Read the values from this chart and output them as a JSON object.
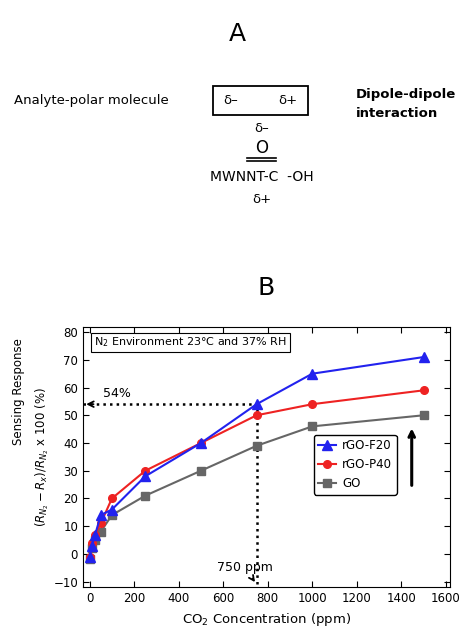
{
  "panel_A_label": "A",
  "panel_B_label": "B",
  "analyte_text": "Analyte-polar molecule",
  "box_text_left": "δ–",
  "box_text_right": "δ+",
  "dipole_line1": "Dipole-dipole",
  "dipole_line2": "interaction",
  "mwnnt_text": "MWNNT-C  -OH",
  "delta_minus_top": "δ–",
  "delta_plus_bottom": "δ+",
  "double_bond_o": "O",
  "annotation_text": "N₂ Environment 23°C and 37% RH",
  "annotation_54": "54%",
  "annotation_750": "750 ppm",
  "legend_rGO_F20": "rGO-F20",
  "legend_rGO_P40": "rGO-P40",
  "legend_GO": "GO",
  "x_data": [
    0,
    10,
    25,
    50,
    100,
    250,
    500,
    750,
    1000,
    1500
  ],
  "rGO_F20_y": [
    -1,
    3,
    7,
    14,
    16,
    28,
    40,
    54,
    65,
    71
  ],
  "rGO_P40_y": [
    -1,
    4,
    7,
    11,
    20,
    30,
    40,
    50,
    54,
    59
  ],
  "GO_y": [
    -2,
    2,
    5,
    8,
    14,
    21,
    30,
    39,
    46,
    50
  ],
  "xlim": [
    -30,
    1620
  ],
  "ylim": [
    -12,
    82
  ],
  "xticks": [
    0,
    200,
    400,
    600,
    800,
    1000,
    1200,
    1400,
    1600
  ],
  "yticks": [
    -10,
    0,
    10,
    20,
    30,
    40,
    50,
    60,
    70,
    80
  ],
  "color_rGO_F20": "#2222ee",
  "color_rGO_P40": "#ee2222",
  "color_GO": "#666666",
  "background_color": "#ffffff"
}
